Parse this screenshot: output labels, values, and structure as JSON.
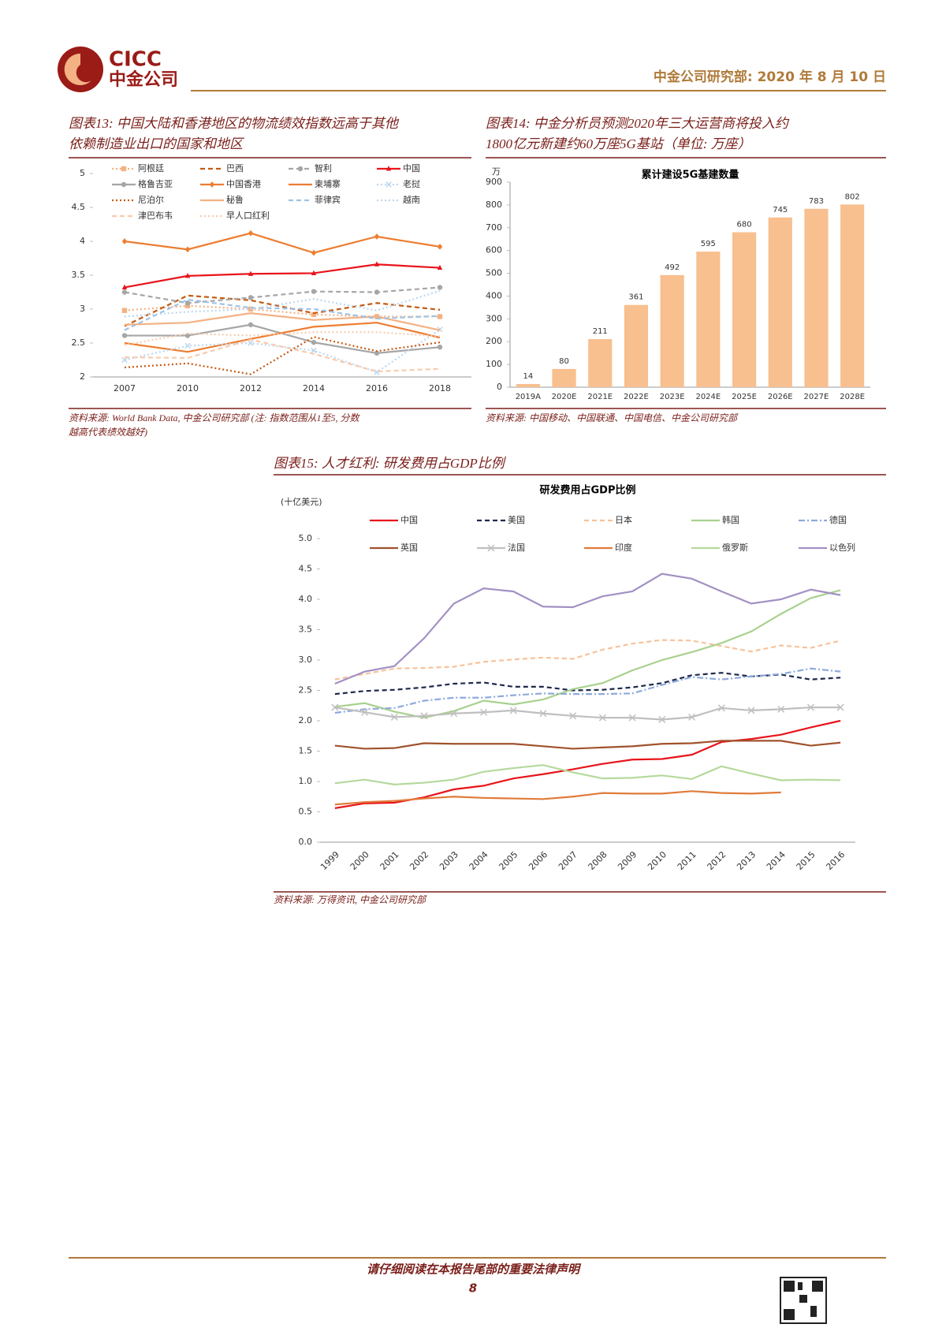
{
  "header": {
    "logo_en": "CICC",
    "logo_cn": "中金公司",
    "right": "中金公司研究部: 2020 年 8 月 10 日"
  },
  "footer": {
    "notice": "请仔细阅读在本报告尾部的重要法律声明",
    "page": "8"
  },
  "chart_data": [
    {
      "type": "line",
      "caption": [
        "图表13: 中国大陆和香港地区的物流绩效指数远高于其他",
        "依赖制造业出口的国家和地区"
      ],
      "source": [
        "资料来源: World Bank Data, 中金公司研究部 (注: 指数范围从1至5, 分数",
        "越高代表绩效越好)"
      ],
      "categories": [
        "2007",
        "2010",
        "2012",
        "2014",
        "2016",
        "2018"
      ],
      "ylim": [
        2,
        5
      ],
      "yticks": [
        2,
        2.5,
        3,
        3.5,
        4,
        4.5,
        5
      ],
      "series": [
        {
          "name": "阿根廷",
          "color": "#f4b183",
          "dash": "dotted",
          "marker": "square",
          "values": [
            2.98,
            3.05,
            3.0,
            2.92,
            2.89,
            2.89
          ]
        },
        {
          "name": "巴西",
          "color": "#c55a11",
          "dash": "dashed",
          "marker": "none",
          "values": [
            2.75,
            3.2,
            3.13,
            2.94,
            3.09,
            2.99
          ]
        },
        {
          "name": "智利",
          "color": "#a6a6a6",
          "dash": "dashed",
          "marker": "circle",
          "values": [
            3.25,
            3.09,
            3.17,
            3.26,
            3.25,
            3.32
          ]
        },
        {
          "name": "中国",
          "color": "#e8141b",
          "dash": "solid",
          "marker": "triangle",
          "values": [
            3.32,
            3.49,
            3.52,
            3.53,
            3.66,
            3.61
          ]
        },
        {
          "name": "格鲁吉亚",
          "color": "#a6a6a6",
          "dash": "solid",
          "marker": "circle",
          "values": [
            2.61,
            2.61,
            2.77,
            2.51,
            2.35,
            2.44
          ]
        },
        {
          "name": "中国香港",
          "color": "#ed7d31",
          "dash": "solid",
          "marker": "diamond",
          "values": [
            4.0,
            3.88,
            4.12,
            3.83,
            4.07,
            3.92
          ]
        },
        {
          "name": "柬埔寨",
          "color": "#ed7d31",
          "dash": "solid",
          "marker": "none",
          "values": [
            2.5,
            2.37,
            2.56,
            2.74,
            2.8,
            2.58
          ]
        },
        {
          "name": "老挝",
          "color": "#bdd7ee",
          "dash": "dotted",
          "marker": "x",
          "values": [
            2.25,
            2.46,
            2.5,
            2.39,
            2.07,
            2.7
          ]
        },
        {
          "name": "尼泊尔",
          "color": "#c55a11",
          "dash": "dotted",
          "marker": "none",
          "values": [
            2.14,
            2.2,
            2.04,
            2.59,
            2.38,
            2.51
          ]
        },
        {
          "name": "秘鲁",
          "color": "#f4b183",
          "dash": "solid",
          "marker": "none",
          "values": [
            2.77,
            2.8,
            2.94,
            2.84,
            2.89,
            2.69
          ]
        },
        {
          "name": "菲律宾",
          "color": "#9dc3e6",
          "dash": "dashed",
          "marker": "none",
          "values": [
            2.69,
            3.14,
            3.02,
            3.0,
            2.86,
            2.9
          ]
        },
        {
          "name": "越南",
          "color": "#bdd7ee",
          "dash": "dotted",
          "marker": "none",
          "values": [
            2.89,
            2.96,
            3.0,
            3.15,
            2.98,
            3.27
          ]
        },
        {
          "name": "津巴布韦",
          "color": "#f8cbad",
          "dash": "dashed",
          "marker": "none",
          "values": [
            2.29,
            2.28,
            2.55,
            2.34,
            2.08,
            2.12
          ]
        },
        {
          "name": "早人口红利",
          "color": "#f8cbad",
          "dash": "dotted",
          "marker": "none",
          "values": [
            2.47,
            2.64,
            2.61,
            2.66,
            2.66,
            2.6
          ]
        }
      ]
    },
    {
      "type": "bar",
      "caption": [
        "图表14: 中金分析员预测2020年三大运营商将投入约",
        "1800亿元新建约60万座5G基站（单位: 万座）"
      ],
      "title": "累计建设5G基建数量",
      "y_unit": "万",
      "source": [
        "资料来源: 中国移动、中国联通、中国电信、中金公司研究部"
      ],
      "categories": [
        "2019A",
        "2020E",
        "2021E",
        "2022E",
        "2023E",
        "2024E",
        "2025E",
        "2026E",
        "2027E",
        "2028E"
      ],
      "values": [
        14,
        80,
        211,
        361,
        492,
        595,
        680,
        745,
        783,
        802
      ],
      "color": "#f8bf8f",
      "ylim": [
        0,
        900
      ],
      "yticks": [
        0,
        100,
        200,
        300,
        400,
        500,
        600,
        700,
        800,
        900
      ]
    },
    {
      "type": "line",
      "caption": [
        "图表15: 人才红利: 研发费用占GDP比例"
      ],
      "title": "研发费用占GDP比例",
      "y_unit": "(十亿美元)",
      "source": [
        "资料来源: 万得资讯, 中金公司研究部"
      ],
      "categories": [
        "1999",
        "2000",
        "2001",
        "2002",
        "2003",
        "2004",
        "2005",
        "2006",
        "2007",
        "2008",
        "2009",
        "2010",
        "2011",
        "2012",
        "2013",
        "2014",
        "2015",
        "2016"
      ],
      "ylim": [
        0,
        5
      ],
      "yticks": [
        {
          "value": 0,
          "label": "0.0"
        },
        0.5,
        {
          "value": 1,
          "label": "1.0"
        },
        1.5,
        {
          "value": 2,
          "label": "2.0"
        },
        2.5,
        {
          "value": 3,
          "label": "3.0"
        },
        3.5,
        {
          "value": 4,
          "label": "4.0"
        },
        4.5,
        {
          "value": 5,
          "label": "5.0"
        }
      ],
      "series": [
        {
          "name": "中国",
          "color": "#e8141b",
          "dash": "solid",
          "marker": "none",
          "values": [
            0.56,
            0.64,
            0.65,
            0.74,
            0.87,
            0.93,
            1.05,
            1.12,
            1.2,
            1.29,
            1.36,
            1.37,
            1.44,
            1.65,
            1.7,
            1.77,
            1.89,
            2.0
          ]
        },
        {
          "name": "美国",
          "color": "#1f2a4d",
          "dash": "dashed",
          "marker": "none",
          "values": [
            2.44,
            2.49,
            2.51,
            2.55,
            2.61,
            2.63,
            2.56,
            2.56,
            2.5,
            2.51,
            2.55,
            2.62,
            2.75,
            2.79,
            2.73,
            2.76,
            2.68,
            2.71
          ]
        },
        {
          "name": "日本",
          "color": "#f8c29a",
          "dash": "dashed",
          "marker": "none",
          "values": [
            2.68,
            2.77,
            2.86,
            2.87,
            2.89,
            2.97,
            3.01,
            3.04,
            3.02,
            3.17,
            3.27,
            3.33,
            3.32,
            3.23,
            3.14,
            3.24,
            3.2,
            3.32
          ]
        },
        {
          "name": "韩国",
          "color": "#a9d18e",
          "dash": "solid",
          "marker": "none",
          "values": [
            2.23,
            2.29,
            2.15,
            2.05,
            2.16,
            2.33,
            2.27,
            2.35,
            2.52,
            2.62,
            2.83,
            3.0,
            3.13,
            3.28,
            3.47,
            3.76,
            4.02,
            4.15
          ]
        },
        {
          "name": "德国",
          "color": "#8eaadb",
          "dash": "dashdot",
          "marker": "none",
          "values": [
            2.13,
            2.19,
            2.21,
            2.33,
            2.38,
            2.38,
            2.42,
            2.45,
            2.44,
            2.44,
            2.45,
            2.59,
            2.72,
            2.68,
            2.73,
            2.77,
            2.86,
            2.81
          ]
        },
        {
          "name": "英国",
          "color": "#a0522d",
          "dash": "solid",
          "marker": "none",
          "values": [
            1.59,
            1.54,
            1.55,
            1.63,
            1.62,
            1.62,
            1.62,
            1.58,
            1.54,
            1.56,
            1.58,
            1.62,
            1.63,
            1.67,
            1.67,
            1.67,
            1.59,
            1.64
          ]
        },
        {
          "name": "法国",
          "color": "#bfbfbf",
          "dash": "solid",
          "marker": "x",
          "values": [
            2.22,
            2.14,
            2.06,
            2.08,
            2.12,
            2.14,
            2.17,
            2.12,
            2.08,
            2.05,
            2.05,
            2.02,
            2.06,
            2.21,
            2.17,
            2.19,
            2.22,
            2.22
          ]
        },
        {
          "name": "印度",
          "color": "#e07b39",
          "dash": "solid",
          "marker": "none",
          "values": [
            0.62,
            0.66,
            0.68,
            0.72,
            0.75,
            0.73,
            0.72,
            0.71,
            0.75,
            0.81,
            0.8,
            0.8,
            0.84,
            0.81,
            0.8,
            0.82,
            null,
            null
          ]
        },
        {
          "name": "俄罗斯",
          "color": "#b5d99c",
          "dash": "solid",
          "marker": "none",
          "values": [
            0.97,
            1.03,
            0.95,
            0.98,
            1.03,
            1.16,
            1.22,
            1.27,
            1.15,
            1.05,
            1.06,
            1.1,
            1.04,
            1.25,
            1.13,
            1.02,
            1.03,
            1.02
          ]
        },
        {
          "name": "以色列",
          "color": "#a390c4",
          "dash": "solid",
          "marker": "none",
          "values": [
            2.61,
            2.81,
            2.9,
            3.36,
            3.93,
            4.18,
            4.13,
            3.88,
            3.87,
            4.05,
            4.13,
            4.42,
            4.34,
            4.13,
            3.93,
            4.0,
            4.16,
            4.07
          ]
        }
      ]
    }
  ]
}
